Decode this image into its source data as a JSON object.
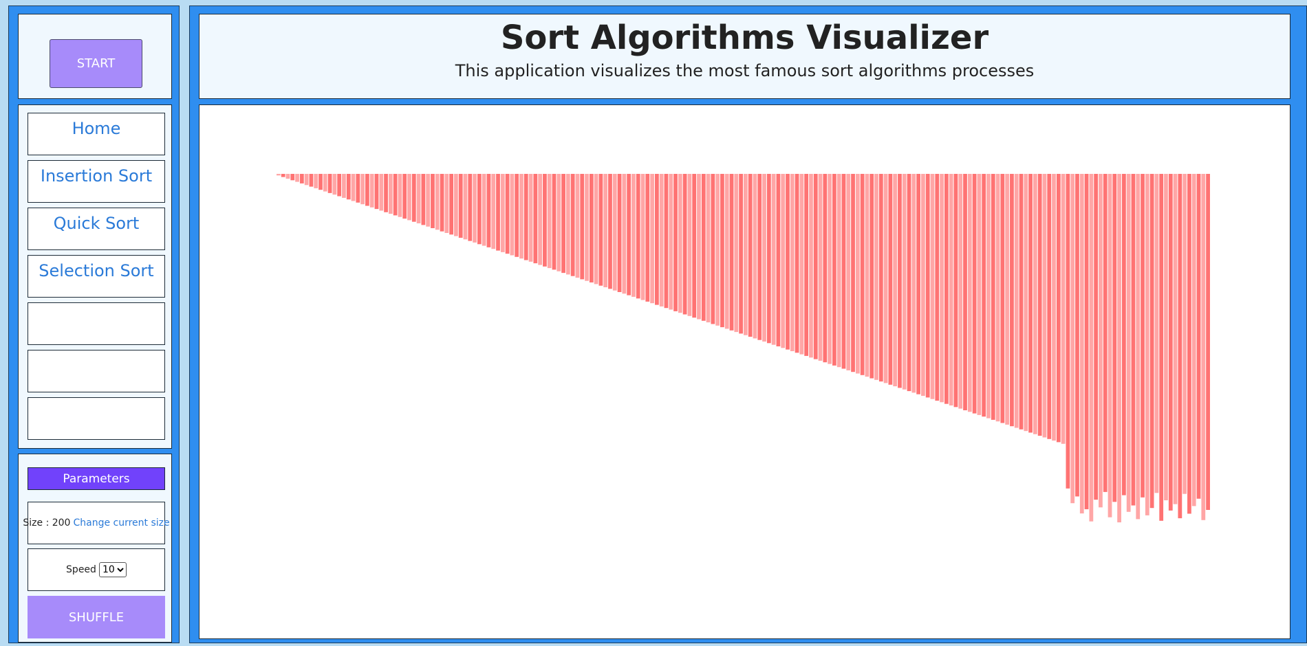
{
  "sidebar": {
    "start_label": "START",
    "nav": [
      {
        "label": "Home"
      },
      {
        "label": "Insertion Sort"
      },
      {
        "label": "Quick Sort"
      },
      {
        "label": "Selection Sort"
      },
      {
        "label": ""
      },
      {
        "label": ""
      },
      {
        "label": ""
      }
    ],
    "parameters": {
      "header": "Parameters",
      "size_label": "Size : 200",
      "change_size_link": "Change current size",
      "speed_label": "Speed",
      "speed_value": "10",
      "shuffle_label": "SHUFFLE"
    }
  },
  "header": {
    "title": "Sort Algorithms Visualizer",
    "subtitle": "This application visualizes the most famous sort algorithms processes"
  },
  "colors": {
    "bar": "#ff6b6b",
    "accent": "#a78bfa",
    "parameters_header": "#7142fb",
    "link": "#2a7ad8"
  },
  "chart_data": {
    "type": "bar",
    "bar_count": 200,
    "sorted_count": 169,
    "unsorted_tail": [
      0.985,
      1.031,
      1.01,
      1.063,
      1.05,
      1.088,
      1.02,
      1.044,
      0.996,
      1.075,
      1.027,
      1.091,
      1.006,
      1.058,
      1.038,
      1.081,
      1.013,
      1.069,
      1.046,
      0.999,
      1.086,
      1.022,
      1.054,
      1.034,
      1.078,
      1.002,
      1.064,
      1.04,
      1.017,
      1.084,
      1.052
    ]
  }
}
